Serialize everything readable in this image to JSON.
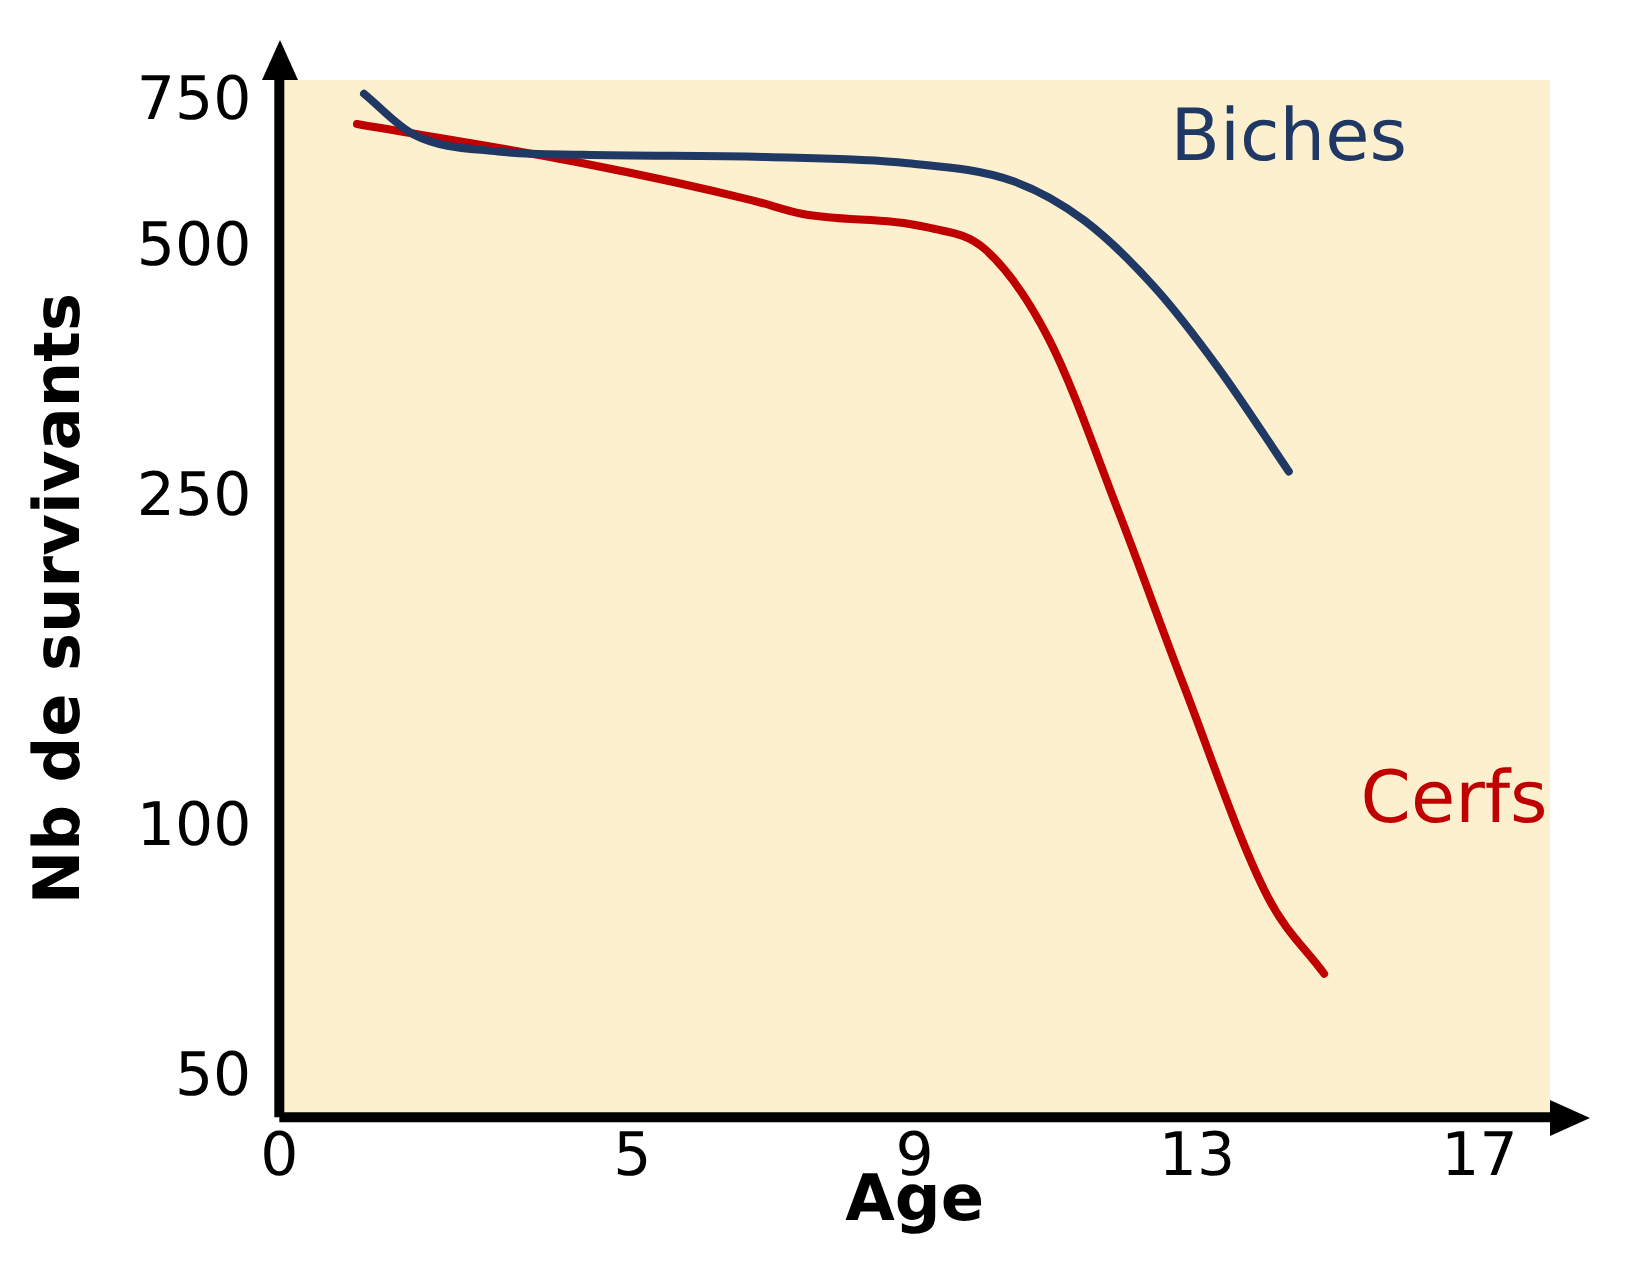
{
  "chart_data": {
    "type": "line",
    "xlabel": "Age",
    "ylabel": "Nb de survivants",
    "log": "y",
    "xlim": [
      0,
      18
    ],
    "xticks": [
      0,
      5,
      9,
      13,
      17
    ],
    "ylim": [
      45,
      800
    ],
    "yticks": [
      50,
      100,
      250,
      500,
      750
    ],
    "grid": false,
    "legend": false,
    "marker": "none",
    "line_style": "solid",
    "series": [
      {
        "name": "Biches",
        "color": "#1f3864",
        "x": [
          1.2,
          1.9,
          3.1,
          4.3,
          6.9,
          8.9,
          10.4,
          11.4,
          12.4,
          13.3,
          14.3
        ],
        "values": [
          770,
          688,
          656,
          650,
          646,
          635,
          604,
          542,
          450,
          360,
          270
        ]
      },
      {
        "name": "Cerfs",
        "color": "#c00000",
        "x": [
          1.1,
          4.3,
          6.7,
          7.4,
          9.2,
          10,
          10.9,
          11.9,
          12.8,
          14,
          14.8
        ],
        "values": [
          708,
          635,
          573,
          552,
          531,
          500,
          390,
          240,
          150,
          83,
          67
        ]
      }
    ]
  }
}
